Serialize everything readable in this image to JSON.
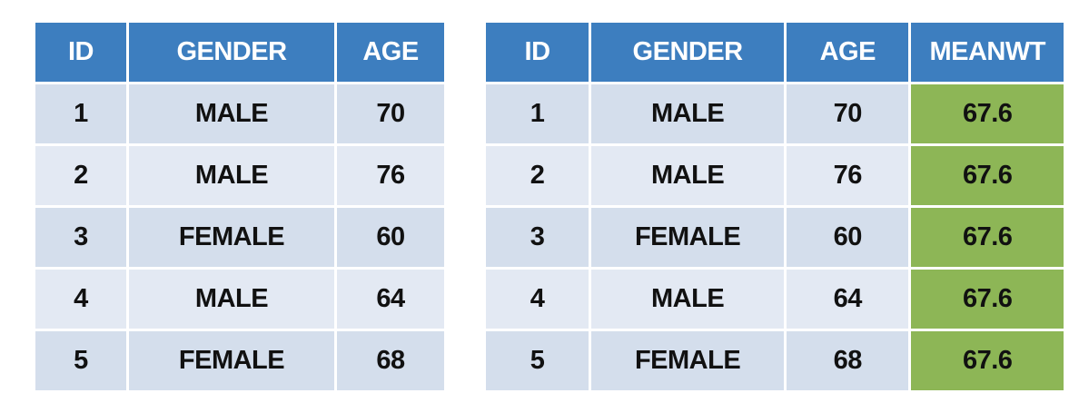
{
  "left_table": {
    "headers": [
      "ID",
      "GENDER",
      "AGE"
    ],
    "rows": [
      [
        "1",
        "MALE",
        "70"
      ],
      [
        "2",
        "MALE",
        "76"
      ],
      [
        "3",
        "FEMALE",
        "60"
      ],
      [
        "4",
        "MALE",
        "64"
      ],
      [
        "5",
        "FEMALE",
        "68"
      ]
    ]
  },
  "right_table": {
    "headers": [
      "ID",
      "GENDER",
      "AGE",
      "MEANWT"
    ],
    "rows": [
      [
        "1",
        "MALE",
        "70",
        "67.6"
      ],
      [
        "2",
        "MALE",
        "76",
        "67.6"
      ],
      [
        "3",
        "FEMALE",
        "60",
        "67.6"
      ],
      [
        "4",
        "MALE",
        "64",
        "67.6"
      ],
      [
        "5",
        "FEMALE",
        "68",
        "67.6"
      ]
    ]
  },
  "colors": {
    "header_bg": "#3d7ebf",
    "cell_bg": "#d4deec",
    "highlight_bg": "#8db656"
  }
}
